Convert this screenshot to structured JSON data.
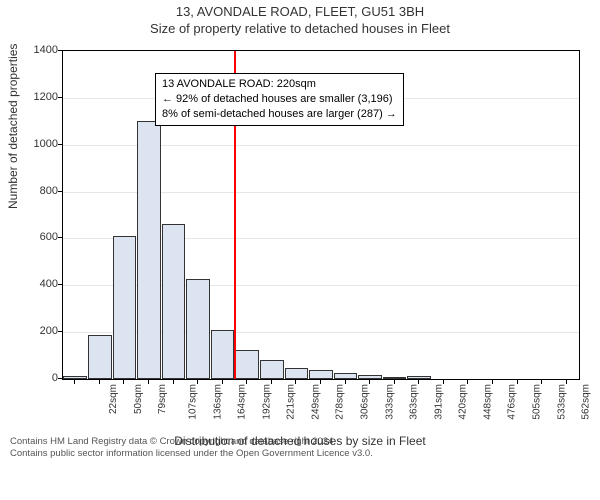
{
  "titles": {
    "main": "13, AVONDALE ROAD, FLEET, GU51 3BH",
    "sub": "Size of property relative to detached houses in Fleet"
  },
  "chart": {
    "type": "bar",
    "yaxis_label": "Number of detached properties",
    "xaxis_label": "Distribution of detached houses by size in Fleet",
    "ylim": [
      0,
      1400
    ],
    "yticks": [
      0,
      200,
      400,
      600,
      800,
      1000,
      1200,
      1400
    ],
    "x_categories": [
      "22sqm",
      "50sqm",
      "79sqm",
      "107sqm",
      "136sqm",
      "164sqm",
      "192sqm",
      "221sqm",
      "249sqm",
      "278sqm",
      "306sqm",
      "333sqm",
      "363sqm",
      "391sqm",
      "420sqm",
      "448sqm",
      "476sqm",
      "505sqm",
      "533sqm",
      "562sqm",
      "590sqm"
    ],
    "values": [
      12,
      190,
      610,
      1100,
      660,
      425,
      210,
      122,
      82,
      46,
      38,
      26,
      16,
      8,
      14,
      2,
      2,
      0,
      0,
      0,
      0
    ],
    "bar_fill": "#dce4f2",
    "bar_border": "#333333",
    "grid_color": "#e6e6e6",
    "background_color": "#ffffff",
    "bar_width_ratio": 0.96,
    "reference": {
      "index_after": 7,
      "color": "#ff0000"
    },
    "font_sizes": {
      "title": 13,
      "subtitle": 13,
      "axis_label": 12,
      "tick": 11,
      "info_box": 11,
      "attribution": 9.5
    }
  },
  "info_box": {
    "line1": "13 AVONDALE ROAD: 220sqm",
    "line2": "← 92% of detached houses are smaller (3,196)",
    "line3": "8% of semi-detached houses are larger (287) →"
  },
  "attribution": {
    "line1": "Contains HM Land Registry data © Crown copyright and database right 2024.",
    "line2": "Contains public sector information licensed under the Open Government Licence v3.0."
  }
}
